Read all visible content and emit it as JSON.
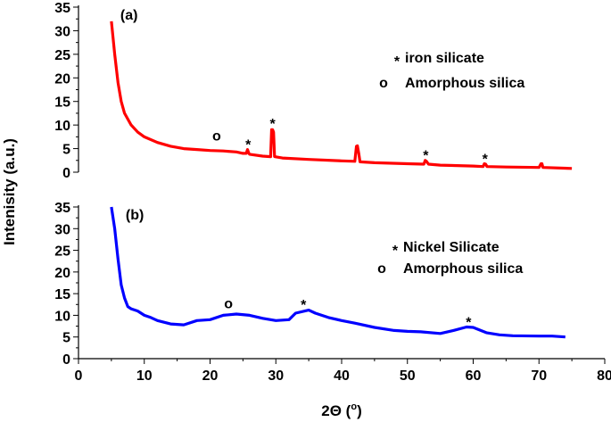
{
  "chart_data": [
    {
      "type": "line",
      "panel_label": "(a)",
      "color": "#ff0000",
      "xlim": [
        0,
        80
      ],
      "ylim": [
        0,
        35
      ],
      "yticks": [
        0,
        5,
        10,
        15,
        20,
        25,
        30,
        35
      ],
      "x": [
        5,
        5.5,
        6,
        6.5,
        7,
        8,
        9,
        10,
        12,
        14,
        16,
        18,
        20,
        22,
        24,
        25,
        25.5,
        25.7,
        25.9,
        26,
        28,
        29.2,
        29.35,
        29.5,
        29.65,
        29.8,
        31,
        35,
        40,
        42,
        42.25,
        42.4,
        42.6,
        42.8,
        45,
        50,
        52.5,
        52.7,
        52.9,
        53.2,
        55,
        60,
        61.5,
        61.7,
        61.9,
        62.1,
        65,
        70,
        70.3,
        70.45,
        70.6,
        75
      ],
      "y": [
        32,
        25,
        19,
        15,
        12.5,
        10,
        8.5,
        7.5,
        6.3,
        5.5,
        5,
        4.8,
        4.6,
        4.5,
        4.3,
        4.0,
        4.0,
        4.8,
        4.0,
        3.8,
        3.4,
        3.3,
        9,
        9,
        8.5,
        3.3,
        3.0,
        2.7,
        2.4,
        2.3,
        5.5,
        5.6,
        4,
        2.2,
        2.0,
        1.8,
        1.7,
        2.5,
        2.3,
        1.7,
        1.5,
        1.3,
        1.2,
        1.8,
        1.7,
        1.2,
        1.1,
        1.0,
        1.8,
        1.8,
        1.0,
        0.8
      ],
      "annotations": [
        {
          "text": "o",
          "x": 21,
          "y": 7.5
        },
        {
          "text": "*",
          "x": 25.8,
          "y": 6.3
        },
        {
          "text": "*",
          "x": 29.5,
          "y": 10.8
        },
        {
          "text": "*",
          "x": 52.8,
          "y": 4.1
        },
        {
          "text": "*",
          "x": 61.8,
          "y": 3.3
        }
      ],
      "legend": [
        {
          "symbol": "*",
          "label": "iron silicate"
        },
        {
          "symbol": "o",
          "label": "Amorphous silica"
        }
      ]
    },
    {
      "type": "line",
      "panel_label": "(b)",
      "color": "#0000ff",
      "xlim": [
        0,
        80
      ],
      "ylim": [
        0,
        35
      ],
      "yticks": [
        0,
        5,
        10,
        15,
        20,
        25,
        30,
        35
      ],
      "xticks": [
        0,
        10,
        20,
        30,
        40,
        50,
        60,
        70,
        80
      ],
      "x": [
        5,
        5.5,
        6,
        6.5,
        7,
        7.5,
        8,
        9,
        10,
        11,
        12,
        14,
        16,
        18,
        20,
        22,
        24,
        26,
        28,
        30,
        32,
        33,
        35,
        36,
        38,
        40,
        42,
        45,
        48,
        50,
        52,
        55,
        57,
        59,
        60,
        62,
        64,
        66,
        70,
        72,
        74
      ],
      "y": [
        35,
        30,
        23,
        17,
        14,
        12,
        11.5,
        11,
        10,
        9.5,
        8.8,
        8,
        7.8,
        8.8,
        9,
        10,
        10.3,
        10,
        9.3,
        8.8,
        9,
        10.5,
        11.2,
        10.5,
        9.5,
        8.8,
        8.2,
        7.2,
        6.5,
        6.3,
        6.2,
        5.8,
        6.5,
        7.3,
        7.2,
        6,
        5.5,
        5.3,
        5.2,
        5.2,
        5
      ],
      "annotations": [
        {
          "text": "o",
          "x": 22.8,
          "y": 12.5
        },
        {
          "text": "*",
          "x": 34.2,
          "y": 13
        },
        {
          "text": "*",
          "x": 59.3,
          "y": 9
        }
      ],
      "legend": [
        {
          "symbol": "*",
          "label": "Nickel Silicate"
        },
        {
          "symbol": "o",
          "label": "Amorphous silica"
        }
      ]
    }
  ],
  "axes": {
    "ylabel": "Intenisity (a.u.)",
    "xlabel_main": "2Θ (",
    "xlabel_sup": "o",
    "xlabel_close": ")"
  }
}
